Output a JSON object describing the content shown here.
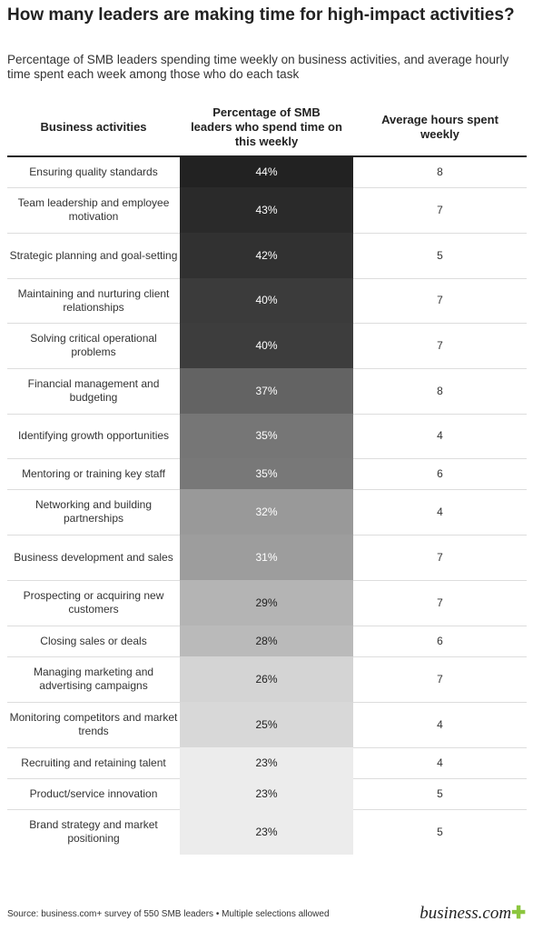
{
  "header": {
    "title": "How many leaders are making time for high-impact activities?",
    "subtitle": "Percentage of SMB leaders spending time weekly on business activities, and average hourly time spent each week among those who do each task"
  },
  "table": {
    "columns": [
      "Business activities",
      "Percentage of SMB leaders who spend time on this weekly",
      "Average hours spent weekly"
    ],
    "rows": [
      [
        "Ensuring quality standards",
        "44%",
        8
      ],
      [
        "Team leadership and employee motivation",
        "43%",
        7
      ],
      [
        "Strategic planning and goal-setting",
        "42%",
        5
      ],
      [
        "Maintaining and nurturing client relationships",
        "40%",
        7
      ],
      [
        "Solving critical operational problems",
        "40%",
        7
      ],
      [
        "Financial management and budgeting",
        "37%",
        8
      ],
      [
        "Identifying growth opportunities",
        "35%",
        4
      ],
      [
        "Mentoring or training key staff",
        "35%",
        6
      ],
      [
        "Networking and building partnerships",
        "32%",
        4
      ],
      [
        "Business development and sales",
        "31%",
        7
      ],
      [
        "Prospecting or acquiring new customers",
        "29%",
        7
      ],
      [
        "Closing sales or deals",
        "28%",
        6
      ],
      [
        "Managing marketing and advertising campaigns",
        "26%",
        7
      ],
      [
        "Monitoring competitors and market trends",
        "25%",
        4
      ],
      [
        "Recruiting and retaining talent",
        "23%",
        4
      ],
      [
        "Product/service innovation",
        "23%",
        5
      ],
      [
        "Brand strategy and market positioning",
        "23%",
        5
      ]
    ],
    "shades": [
      "#222222",
      "#2a2a2a",
      "#313131",
      "#3b3b3b",
      "#3d3d3d",
      "#636363",
      "#767676",
      "#787878",
      "#999999",
      "#9d9d9d",
      "#b4b4b4",
      "#bababa",
      "#d4d4d4",
      "#d8d8d8",
      "#ececec",
      "#ececec",
      "#ececec"
    ]
  },
  "footer": {
    "source": "Source: business.com+ survey of 550 SMB leaders • Multiple selections allowed",
    "logo": "business.com"
  }
}
